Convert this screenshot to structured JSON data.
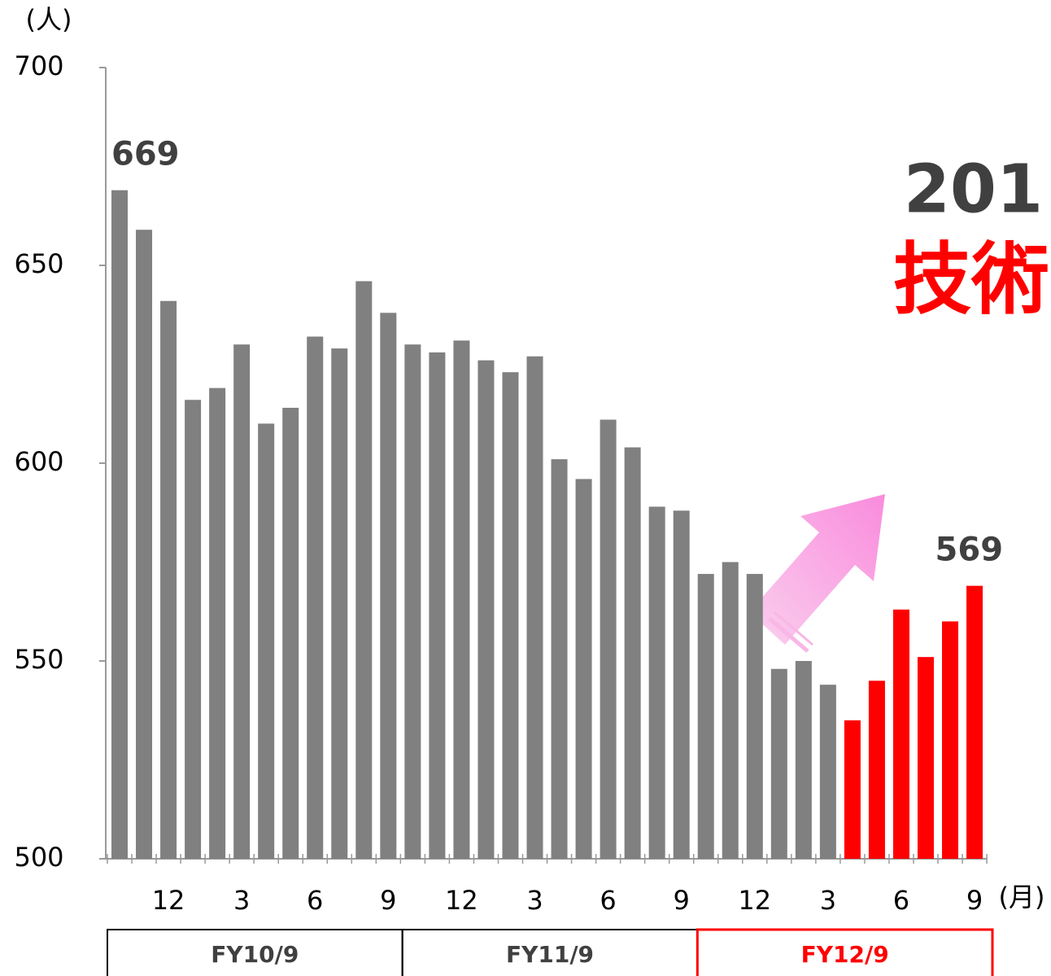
{
  "chart_data": {
    "type": "bar",
    "y_unit_label": "(人)",
    "x_unit_label": "(月)",
    "annotations": [
      "201",
      "技術"
    ],
    "categories": [
      null,
      null,
      "12",
      null,
      null,
      "3",
      null,
      null,
      "6",
      null,
      null,
      "9",
      null,
      null,
      "12",
      null,
      null,
      "3",
      null,
      null,
      "6",
      null,
      null,
      "9",
      null,
      null,
      "12",
      null,
      null,
      "3",
      null,
      null,
      "6",
      null,
      null,
      "9"
    ],
    "values": [
      669,
      659,
      641,
      616,
      619,
      630,
      610,
      614,
      632,
      629,
      646,
      638,
      630,
      628,
      631,
      626,
      623,
      627,
      601,
      596,
      611,
      604,
      589,
      588,
      572,
      575,
      572,
      548,
      550,
      544,
      535,
      545,
      563,
      551,
      560,
      569
    ],
    "colors": [
      "#808080",
      "#808080",
      "#808080",
      "#808080",
      "#808080",
      "#808080",
      "#808080",
      "#808080",
      "#808080",
      "#808080",
      "#808080",
      "#808080",
      "#808080",
      "#808080",
      "#808080",
      "#808080",
      "#808080",
      "#808080",
      "#808080",
      "#808080",
      "#808080",
      "#808080",
      "#808080",
      "#808080",
      "#808080",
      "#808080",
      "#808080",
      "#808080",
      "#808080",
      "#808080",
      "#ff0000",
      "#ff0000",
      "#ff0000",
      "#ff0000",
      "#ff0000",
      "#ff0000"
    ],
    "labeled_points": [
      0,
      35
    ],
    "groups": [
      {
        "label": "FY10/9",
        "color": "#000000"
      },
      {
        "label": "FY11/9",
        "color": "#000000"
      },
      {
        "label": "FY12/9",
        "color": "#ff0000"
      }
    ],
    "ylim": [
      500,
      700
    ],
    "yticks": [
      500,
      550,
      600,
      650,
      700
    ]
  }
}
